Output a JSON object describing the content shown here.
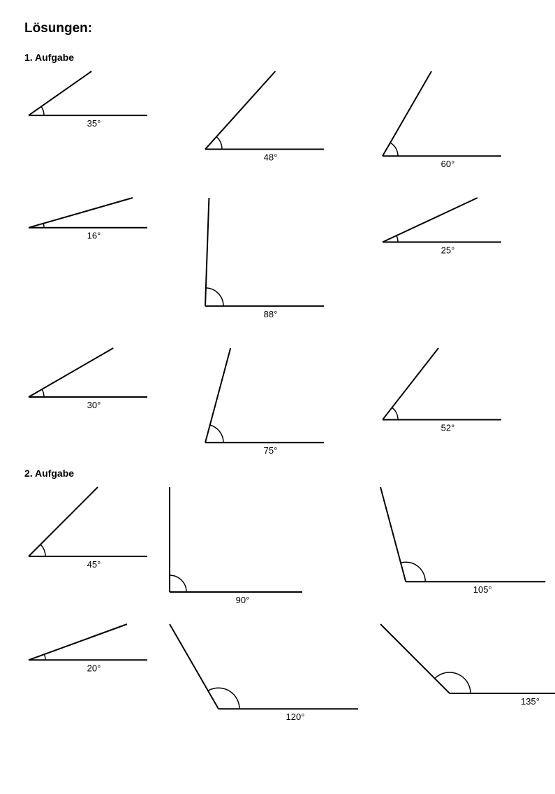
{
  "page": {
    "title": "Lösungen:",
    "background_color": "#ffffff",
    "text_color": "#000000",
    "stroke_color": "#000000",
    "stroke_width": 2,
    "font_family": "Arial",
    "title_fontsize": 19,
    "heading_fontsize": 14,
    "label_fontsize": 13
  },
  "tasks": [
    {
      "heading": "1. Aufgabe",
      "layout": "grid-3x3",
      "angles": [
        {
          "deg": 35,
          "label": "35°",
          "base_len": 170,
          "ray_len": 110,
          "arc_r": 22
        },
        {
          "deg": 48,
          "label": "48°",
          "base_len": 170,
          "ray_len": 150,
          "arc_r": 24
        },
        {
          "deg": 60,
          "label": "60°",
          "base_len": 170,
          "ray_len": 140,
          "arc_r": 22
        },
        {
          "deg": 16,
          "label": "16°",
          "base_len": 170,
          "ray_len": 155,
          "arc_r": 22
        },
        {
          "deg": 88,
          "label": "88°",
          "base_len": 170,
          "ray_len": 155,
          "arc_r": 26
        },
        {
          "deg": 25,
          "label": "25°",
          "base_len": 170,
          "ray_len": 150,
          "arc_r": 22
        },
        {
          "deg": 30,
          "label": "30°",
          "base_len": 170,
          "ray_len": 140,
          "arc_r": 22
        },
        {
          "deg": 75,
          "label": "75°",
          "base_len": 170,
          "ray_len": 140,
          "arc_r": 26
        },
        {
          "deg": 52,
          "label": "52°",
          "base_len": 170,
          "ray_len": 130,
          "arc_r": 22
        }
      ]
    },
    {
      "heading": "2. Aufgabe",
      "layout": "grid-3x2",
      "angles": [
        {
          "deg": 45,
          "label": "45°",
          "base_len": 170,
          "ray_len": 140,
          "arc_r": 24
        },
        {
          "deg": 90,
          "label": "90°",
          "base_len": 190,
          "ray_len": 150,
          "arc_r": 24
        },
        {
          "deg": 105,
          "label": "105°",
          "base_len": 200,
          "ray_len": 140,
          "arc_r": 28
        },
        {
          "deg": 20,
          "label": "20°",
          "base_len": 170,
          "ray_len": 150,
          "arc_r": 24
        },
        {
          "deg": 120,
          "label": "120°",
          "base_len": 200,
          "ray_len": 140,
          "arc_r": 30
        },
        {
          "deg": 135,
          "label": "135°",
          "base_len": 210,
          "ray_len": 140,
          "arc_r": 30
        }
      ]
    }
  ]
}
